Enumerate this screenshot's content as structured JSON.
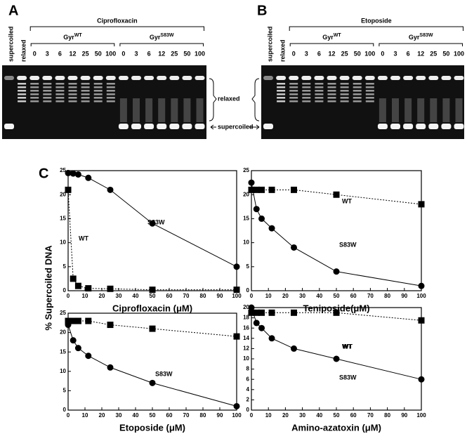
{
  "figure": {
    "letters": [
      "A",
      "B",
      "C"
    ],
    "ylabel": "% Supercoiled DNA"
  },
  "gels": [
    {
      "lanes": [
        "supercoiled",
        "relaxed"
      ],
      "drug": "Ciprofloxacin",
      "groups": [
        {
          "name": "Gyr",
          "sup": "WT",
          "conc": [
            "0",
            "3",
            "6",
            "12",
            "25",
            "50",
            "100"
          ]
        },
        {
          "name": "Gyr",
          "sup": "S83W",
          "conc": [
            "0",
            "3",
            "6",
            "12",
            "25",
            "50",
            "100"
          ]
        }
      ],
      "bracket_label": "relaxed",
      "arrow_label": "supercoiled"
    },
    {
      "lanes": [
        "supercoiled",
        "relaxed"
      ],
      "drug": "Etoposide",
      "groups": [
        {
          "name": "Gyr",
          "sup": "WT",
          "conc": [
            "0",
            "3",
            "6",
            "12",
            "25",
            "50",
            "100"
          ]
        },
        {
          "name": "Gyr",
          "sup": "S83W",
          "conc": [
            "0",
            "3",
            "6",
            "12",
            "25",
            "50",
            "100"
          ]
        }
      ]
    }
  ],
  "chart_data": [
    {
      "type": "line",
      "xlabel": "Ciprofloxacin (μM)",
      "xlim": [
        0,
        100
      ],
      "ylim": [
        0,
        25
      ],
      "xticks": [
        0,
        10,
        20,
        30,
        40,
        50,
        60,
        70,
        80,
        90,
        100
      ],
      "yticks": [
        0,
        5,
        10,
        15,
        20,
        25
      ],
      "x": [
        0,
        3,
        6,
        12,
        25,
        50,
        100
      ],
      "series": [
        {
          "name": "S83W",
          "color": "#000000",
          "marker": "circle",
          "linestyle": "solid",
          "values": [
            24.5,
            24.4,
            24.2,
            23.5,
            21,
            14,
            5
          ]
        },
        {
          "name": "WT",
          "color": "#000000",
          "marker": "square",
          "linestyle": "dotted",
          "values": [
            21,
            2.5,
            1,
            0.5,
            0.4,
            0.2,
            0.2
          ]
        }
      ]
    },
    {
      "type": "line",
      "xlabel": "Teniposide(μM)",
      "xlim": [
        0,
        100
      ],
      "ylim": [
        0,
        25
      ],
      "xticks": [
        0,
        10,
        20,
        30,
        40,
        50,
        60,
        70,
        80,
        90,
        100
      ],
      "yticks": [
        0,
        5,
        10,
        15,
        20,
        25
      ],
      "x": [
        0,
        3,
        6,
        12,
        25,
        50,
        100
      ],
      "series": [
        {
          "name": "S83W",
          "color": "#000000",
          "marker": "circle",
          "linestyle": "solid",
          "values": [
            22.5,
            17,
            15,
            13,
            9,
            4,
            1
          ]
        },
        {
          "name": "WT",
          "color": "#000000",
          "marker": "square",
          "linestyle": "dotted",
          "values": [
            21,
            21,
            21,
            21,
            21,
            20,
            18
          ]
        }
      ]
    },
    {
      "type": "line",
      "xlabel": "Etoposide (μM)",
      "xlim": [
        0,
        100
      ],
      "ylim": [
        0,
        25
      ],
      "xticks": [
        0,
        10,
        20,
        30,
        40,
        50,
        60,
        70,
        80,
        90,
        100
      ],
      "yticks": [
        0,
        5,
        10,
        15,
        20,
        25
      ],
      "x": [
        0,
        3,
        6,
        12,
        25,
        50,
        100
      ],
      "series": [
        {
          "name": "S83W",
          "color": "#000000",
          "marker": "circle",
          "linestyle": "solid",
          "values": [
            22,
            18,
            16,
            14,
            11,
            7,
            1
          ]
        },
        {
          "name": "WT",
          "color": "#000000",
          "marker": "square",
          "linestyle": "dotted",
          "values": [
            23,
            23,
            23,
            23,
            22,
            21,
            19
          ]
        }
      ]
    },
    {
      "type": "line",
      "xlabel": "Amino-azatoxin (μM)",
      "xlim": [
        0,
        100
      ],
      "ylim": [
        0,
        20
      ],
      "xticks": [
        0,
        10,
        20,
        30,
        40,
        50,
        60,
        70,
        80,
        90,
        100
      ],
      "yticks": [
        0,
        2,
        4,
        6,
        8,
        10,
        12,
        14,
        16,
        18,
        20
      ],
      "x": [
        0,
        3,
        6,
        12,
        25,
        50,
        100
      ],
      "series": [
        {
          "name": "S83W",
          "color": "#000000",
          "marker": "circle",
          "linestyle": "solid",
          "values": [
            20,
            17,
            16,
            14,
            12,
            10,
            6
          ]
        },
        {
          "name": "WT",
          "color": "#000000",
          "marker": "square",
          "linestyle": "dotted",
          "values": [
            19,
            19,
            19,
            19,
            19,
            19,
            17.5
          ]
        }
      ]
    }
  ]
}
